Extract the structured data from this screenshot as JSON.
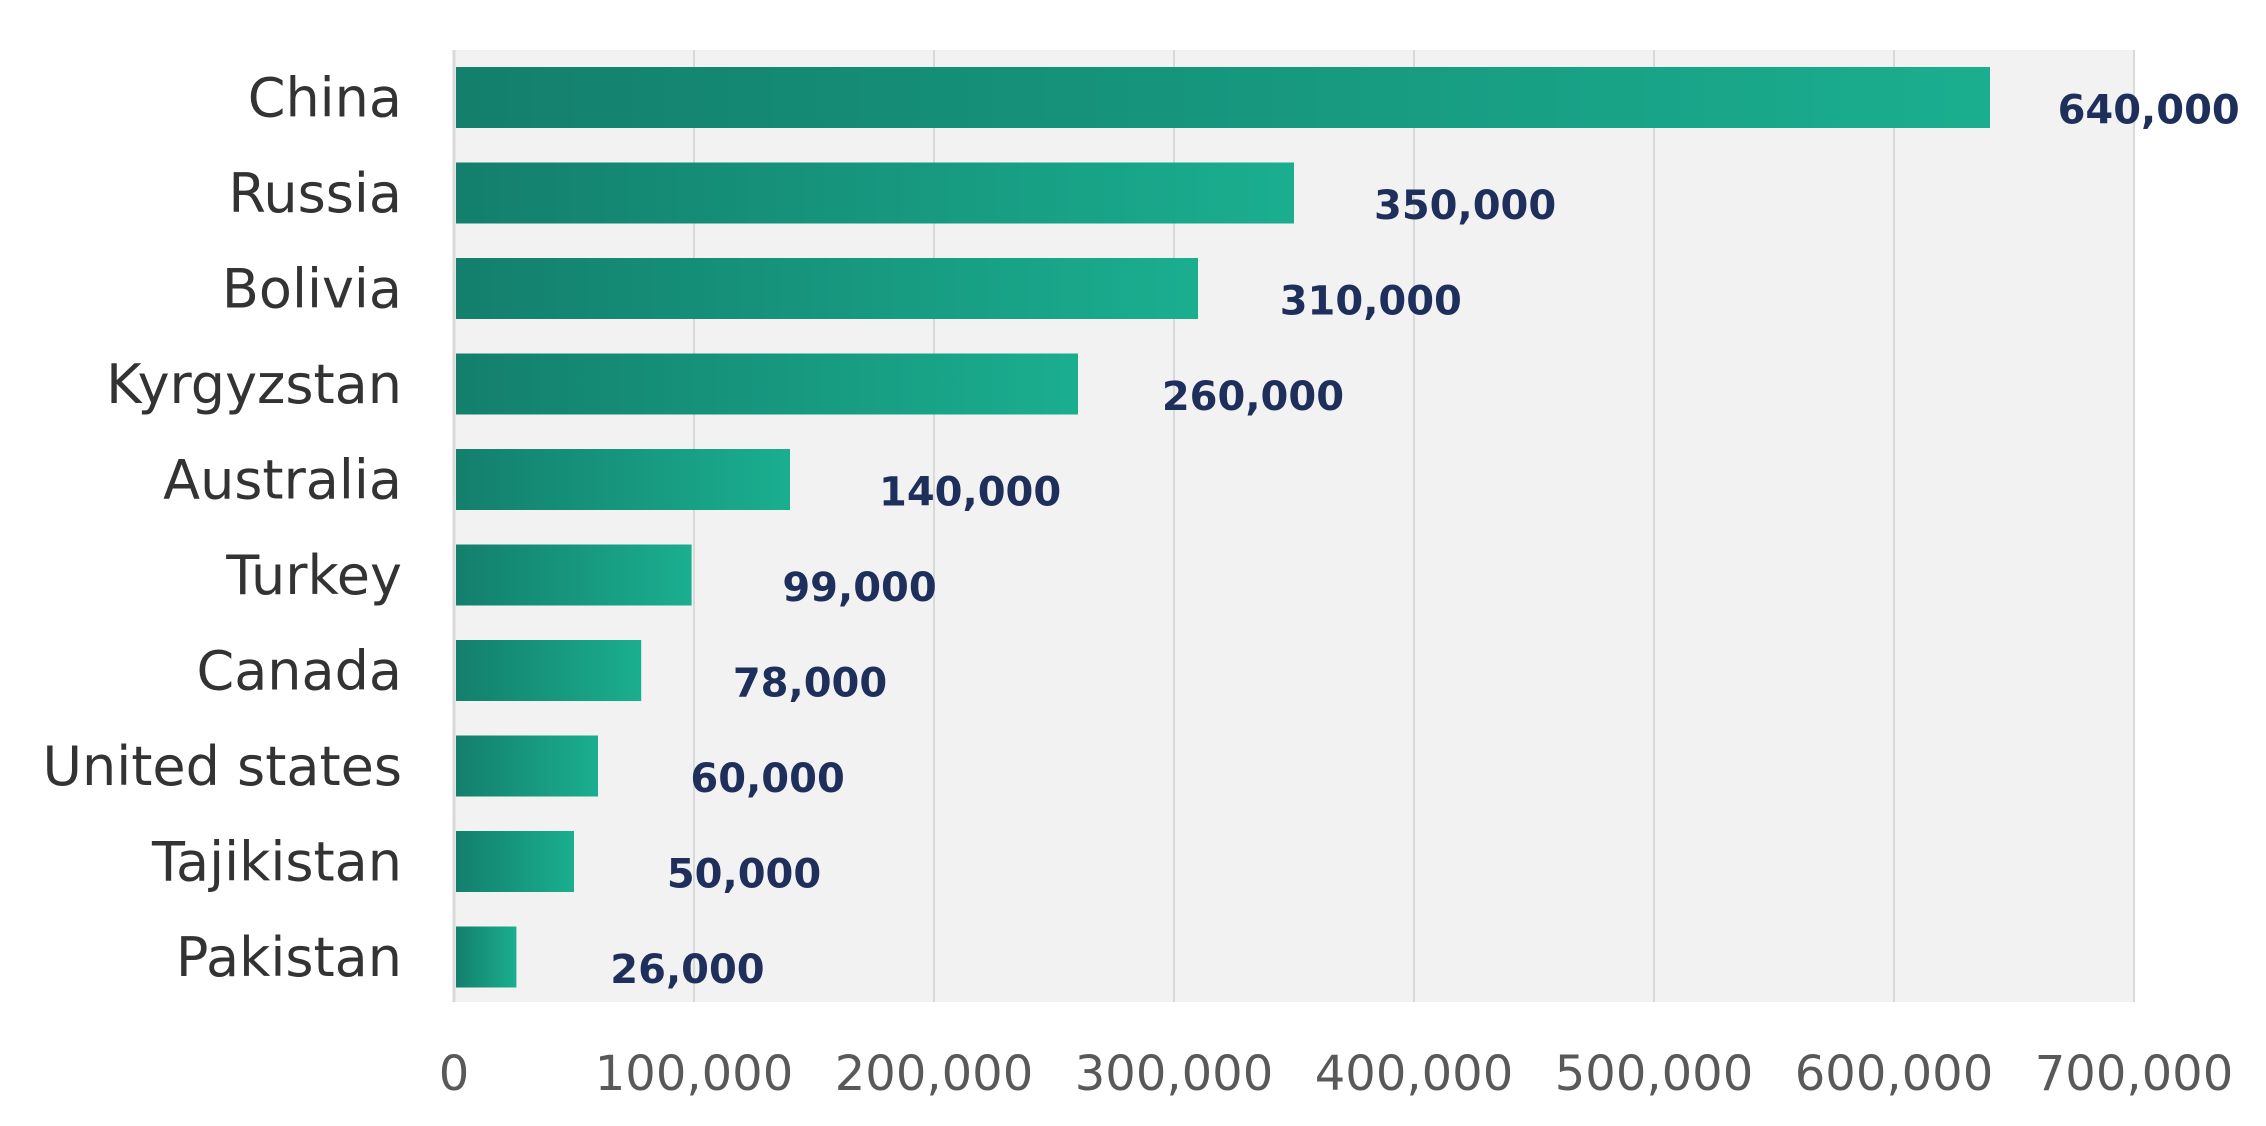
{
  "chart_data": {
    "type": "bar",
    "orientation": "horizontal",
    "categories": [
      "China",
      "Russia",
      "Bolivia",
      "Kyrgyzstan",
      "Australia",
      "Turkey",
      "Canada",
      "United states",
      "Tajikistan",
      "Pakistan"
    ],
    "values": [
      640000,
      350000,
      310000,
      260000,
      140000,
      99000,
      78000,
      60000,
      50000,
      26000
    ],
    "data_labels": [
      "640,000",
      "350,000",
      "310,000",
      "260,000",
      "140,000",
      "99,000",
      "78,000",
      "60,000",
      "50,000",
      "26,000"
    ],
    "x_ticks": [
      0,
      100000,
      200000,
      300000,
      400000,
      500000,
      600000,
      700000
    ],
    "x_tick_labels": [
      "0",
      "100,000",
      "200,000",
      "300,000",
      "400,000",
      "500,000",
      "600,000",
      "700,000"
    ],
    "xlim": [
      0,
      700000
    ],
    "grid": "vertical",
    "legend": "none",
    "colors": {
      "bar_start": "#137f6c",
      "bar_end": "#1aae8f",
      "plot_background": "#f2f2f2",
      "gridline": "#d9d9d9",
      "data_label": "#1f2f5c",
      "category_label": "#333333",
      "tick_label": "#595959"
    }
  }
}
